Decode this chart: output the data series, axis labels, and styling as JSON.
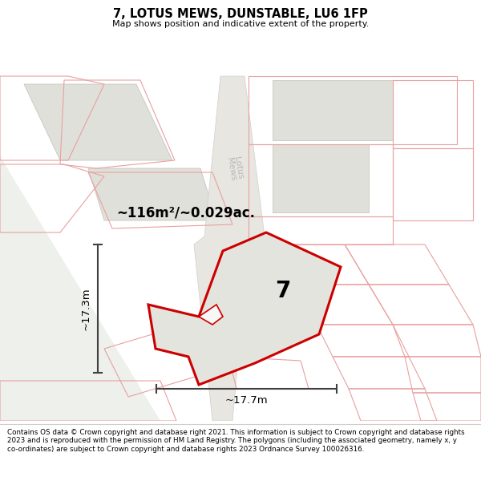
{
  "title": "7, LOTUS MEWS, DUNSTABLE, LU6 1FP",
  "subtitle": "Map shows position and indicative extent of the property.",
  "footer": "Contains OS data © Crown copyright and database right 2021. This information is subject to Crown copyright and database rights 2023 and is reproduced with the permission of HM Land Registry. The polygons (including the associated geometry, namely x, y co-ordinates) are subject to Crown copyright and database rights 2023 Ordnance Survey 100026316.",
  "area_label": "~116m²/~0.029ac.",
  "width_label": "~17.7m",
  "height_label": "~17.3m",
  "plot_number": "7",
  "map_bg": "#f8f8f6",
  "highlight_color": "#cc0000",
  "plot_fill": "#e4e4de",
  "building_fill": "#e0e0da",
  "building_edge": "#c8c8c0",
  "pink_edge": "#e8a0a0",
  "road_fill": "#e8e6e0",
  "road_edge": "#d0cec8",
  "road_label_color": "#b8b8b8",
  "green_color": "#edf0eb",
  "dim_color": "#404040"
}
